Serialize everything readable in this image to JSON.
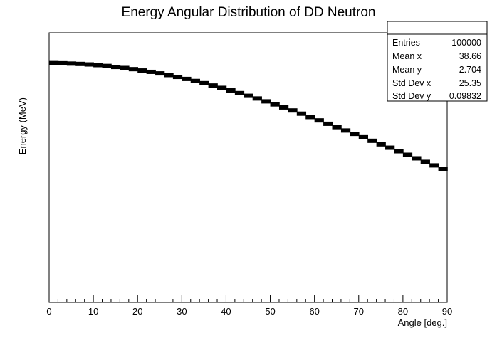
{
  "chart_data": {
    "type": "heatmap",
    "title": "Energy Angular Distribution of DD Neutron",
    "xlabel": "Angle [deg.]",
    "ylabel": "Energy (MeV)",
    "xlim": [
      0,
      90
    ],
    "ylim": [
      2.2,
      3.0
    ],
    "x_ticks": [
      "0",
      "10",
      "20",
      "30",
      "40",
      "50",
      "60",
      "70",
      "80",
      "90"
    ],
    "grid": false,
    "series": [
      {
        "x": [
          0,
          2,
          4,
          6,
          8,
          10,
          12,
          14,
          16,
          18,
          20,
          22,
          24,
          26,
          28,
          30,
          32,
          34,
          36,
          38,
          40,
          42,
          44,
          46,
          48,
          50,
          52,
          54,
          56,
          58,
          60,
          62,
          64,
          66,
          68,
          70,
          72,
          74,
          76,
          78,
          80,
          82,
          84,
          86,
          88,
          90
        ],
        "y": [
          2.91,
          2.91,
          2.909,
          2.908,
          2.907,
          2.905,
          2.903,
          2.9,
          2.897,
          2.894,
          2.89,
          2.886,
          2.882,
          2.877,
          2.872,
          2.866,
          2.86,
          2.854,
          2.847,
          2.84,
          2.833,
          2.825,
          2.817,
          2.809,
          2.801,
          2.792,
          2.783,
          2.774,
          2.765,
          2.755,
          2.745,
          2.735,
          2.725,
          2.715,
          2.705,
          2.695,
          2.685,
          2.674,
          2.664,
          2.654,
          2.643,
          2.633,
          2.622,
          2.612,
          2.601,
          2.59
        ]
      }
    ],
    "stats_box": {
      "rows": [
        {
          "label": "Entries",
          "value": "100000"
        },
        {
          "label": "Mean x",
          "value": "38.66"
        },
        {
          "label": "Mean y",
          "value": "2.704"
        },
        {
          "label": "Std Dev x",
          "value": "25.35"
        },
        {
          "label": "Std Dev y",
          "value": "0.09832"
        }
      ]
    }
  }
}
